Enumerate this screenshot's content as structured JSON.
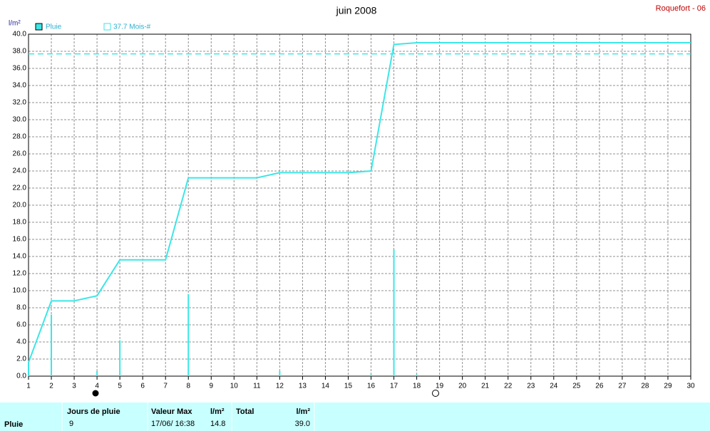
{
  "chart_data": {
    "type": "line",
    "title": "juin 2008",
    "station": "Roquefort - 06",
    "y_label": "l/m²",
    "x": [
      1,
      2,
      3,
      4,
      5,
      6,
      7,
      8,
      9,
      10,
      11,
      12,
      13,
      14,
      15,
      16,
      17,
      18,
      19,
      20,
      21,
      22,
      23,
      24,
      25,
      26,
      27,
      28,
      29,
      30
    ],
    "series": [
      {
        "name": "Pluie",
        "color": "#3ce6e6",
        "values": [
          1.6,
          8.8,
          8.8,
          9.4,
          13.6,
          13.6,
          13.6,
          23.2,
          23.2,
          23.2,
          23.2,
          23.8,
          23.8,
          23.8,
          23.8,
          24.0,
          38.8,
          39.0,
          39.0,
          39.0,
          39.0,
          39.0,
          39.0,
          39.0,
          39.0,
          39.0,
          39.0,
          39.0,
          39.0,
          39.0
        ],
        "bars": [
          1.6,
          7.2,
          0,
          0.6,
          4.2,
          0,
          0,
          9.6,
          0,
          0,
          0,
          0.6,
          0,
          0,
          0,
          0.2,
          14.8,
          0.2,
          0,
          0,
          0,
          0,
          0,
          0,
          0,
          0,
          0,
          0,
          0,
          0
        ]
      }
    ],
    "reference": {
      "label": "37.7 Mois-#",
      "value": 37.7
    },
    "xlim": [
      1,
      30
    ],
    "ylim": [
      0,
      40
    ],
    "xticks": [
      1,
      2,
      3,
      4,
      5,
      6,
      7,
      8,
      9,
      10,
      11,
      12,
      13,
      14,
      15,
      16,
      17,
      18,
      19,
      20,
      21,
      22,
      23,
      24,
      25,
      26,
      27,
      28,
      29,
      30
    ],
    "yticks": [
      {
        "value": 0,
        "label": "0.0"
      },
      {
        "value": 2,
        "label": "2.0"
      },
      {
        "value": 4,
        "label": "4.0"
      },
      {
        "value": 6,
        "label": "6.0"
      },
      {
        "value": 8,
        "label": "8.0"
      },
      {
        "value": 10,
        "label": "10.0"
      },
      {
        "value": 12,
        "label": "12.0"
      },
      {
        "value": 14,
        "label": "14.0"
      },
      {
        "value": 16,
        "label": "16.0"
      },
      {
        "value": 18,
        "label": "18.0"
      },
      {
        "value": 20,
        "label": "20.0"
      },
      {
        "value": 22,
        "label": "22.0"
      },
      {
        "value": 24,
        "label": "24.0"
      },
      {
        "value": 26,
        "label": "26.0"
      },
      {
        "value": 28,
        "label": "28.0"
      },
      {
        "value": 30,
        "label": "30.0"
      },
      {
        "value": 32,
        "label": "32.0"
      },
      {
        "value": 34,
        "label": "34.0"
      },
      {
        "value": 36,
        "label": "36.0"
      },
      {
        "value": 38,
        "label": "38.0"
      },
      {
        "value": 40,
        "label": "40.0"
      }
    ],
    "grid": true
  },
  "table": {
    "header": [
      "Jours de pluie",
      "Valeur Max",
      "l/m²",
      "Total",
      "l/m²"
    ],
    "rows": [
      [
        "Pluie",
        "9",
        "17/06/ 16:38",
        "14.8",
        "39.0"
      ]
    ]
  }
}
